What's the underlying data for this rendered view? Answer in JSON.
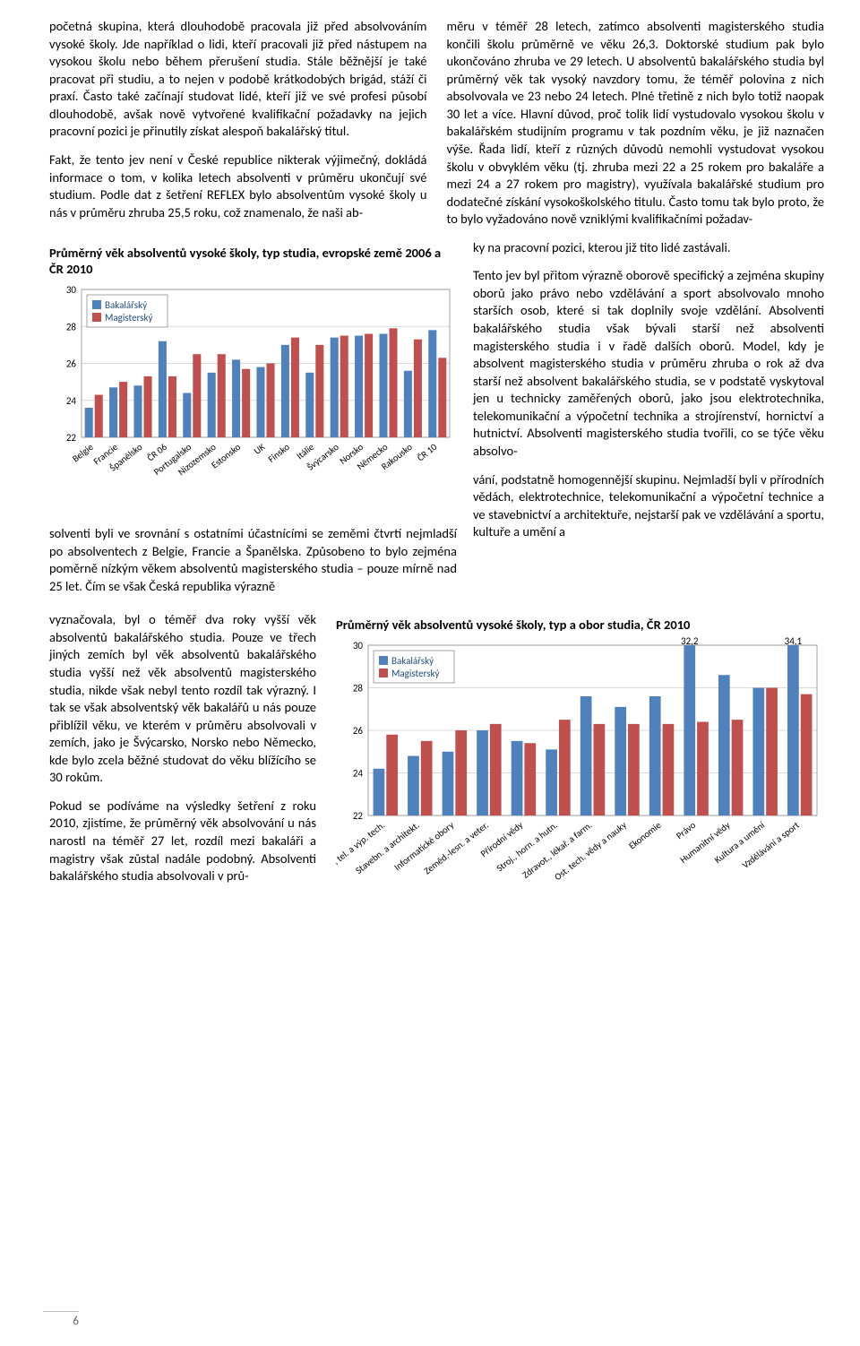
{
  "text": {
    "p1": "početná skupina, která dlouhodobě pracovala již před absolvováním vysoké školy. Jde například o lidi, kteří pracovali již před nástupem na vysokou školu nebo během přerušení studia. Stále běžnější je také pracovat při studiu, a to nejen v podobě krátkodobých brigád, stáží či praxí. Často také začínají studovat lidé, kteří již ve své profesi působí dlouhodobě, avšak nově vytvořené kvalifikační požadavky na jejich pracovní pozici je přinutily získat alespoň bakalářský titul.",
    "p2": "Fakt, že tento jev není v České republice nikterak výjimečný, dokládá informace o tom, v kolika letech absolventi v průměru ukončují své studium. Podle dat z šetření REFLEX bylo absolventům vysoké školy u nás v průměru zhruba 25,5 roku, což znamenalo, že naši ab-",
    "p3a": "solventi byli ve srovnání s ostatními účastnícími se zeměmi čtvrtí nejmladší po absolventech z Belgie, Francie a Španělska. Způsobeno to bylo zejména poměrně nízkým věkem absolventů magisterského studia – pouze mírně nad 25 let. Čím se však Česká republika výrazně",
    "p3b": "vyznačovala, byl o téměř dva roky vyšší věk absolventů bakalářského studia. Pouze ve třech jiných zemích byl věk absolventů bakalářského studia vyšší než věk absolventů magisterského studia, nikde však nebyl tento rozdíl tak výrazný. I tak se však absolventský věk bakalářů u nás pouze přiblížil věku, ve kterém v průměru absolvovali v zemích, jako je Švýcarsko, Norsko nebo Německo, kde bylo zcela běžné studovat do věku blížícího se 30 rokům.",
    "p4": "Pokud se podíváme na výsledky šetření z roku 2010, zjistíme, že průměrný věk absolvování u nás narostl na téměř 27 let, rozdíl mezi bakaláři a magistry však zůstal nadále podobný. Absolventi bakalářského studia absolvovali v prů-",
    "p5": "měru v téměř 28 letech, zatímco absolventi magisterského studia končili školu průměrně ve věku 26,3. Doktorské studium pak bylo ukončováno zhruba ve 29 letech. U absolventů bakalářského studia byl průměrný věk tak vysoký navzdory tomu, že téměř polovina z nich absolvovala ve 23 nebo 24 letech. Plné třetině z nich bylo totiž naopak 30 let a více. Hlavní důvod, proč tolik lidí vystudovalo vysokou školu v bakalářském studijním programu v tak pozdním věku, je již naznačen výše. Řada lidí, kteří z různých důvodů nemohli vystudovat vysokou školu v obvyklém věku (tj. zhruba mezi 22 a 25 rokem pro bakaláře a mezi 24 a 27 rokem pro magistry), využívala bakalářské studium pro dodatečné získání vysokoškolského titulu. Často tomu tak bylo proto, že to bylo vyžadováno nově vzniklými kvalifikačními požadav-",
    "p6": "ky na pracovní pozici, kterou již tito lidé zastávali.",
    "p7": "Tento jev byl přitom výrazně oborově specifický a zejména skupiny oborů jako právo nebo vzdělávání a sport absolvovalo mnoho starších osob, které si tak doplnily svoje vzdělání. Absolventi bakalářského studia však bývali starší než absolventi magisterského studia i v řadě dalších oborů. Model, kdy je absolvent magisterského studia v průměru zhruba o rok až dva starší než absolvent bakalářského studia, se v podstatě vyskytoval jen u technicky zaměřených oborů, jako jsou elektrotechnika, telekomunikační a výpočetní technika a strojírenství, hornictví a hutnictví. Absolventi magisterského studia tvořili, co se týče věku absolvo-",
    "p8": "vání, podstatně homogennější skupinu. Nejmladší byli v přírodních vědách, elektrotechnice, telekomunikační a výpočetní technice a ve stavebnictví a architektuře, nejstarší pak ve vzdělávání a sportu, kultuře a umění a"
  },
  "chart1": {
    "title": "Průměrný věk absolventů vysoké školy, typ studia, evropské země 2006 a ČR 2010",
    "legend": {
      "s1": "Bakalářský",
      "s2": "Magisterský"
    },
    "colors": {
      "s1": "#4f81bd",
      "s2": "#c0504d",
      "grid": "#d9d9d9",
      "axis": "#808080",
      "bg": "#ffffff"
    },
    "ylim": [
      22,
      30
    ],
    "ytick": 2,
    "cats": [
      "Belgie",
      "Francie",
      "Španělsko",
      "ČR 06",
      "Portugalsko",
      "Nizozemsko",
      "Estonsko",
      "UK",
      "Finsko",
      "Itálie",
      "Švýcarsko",
      "Norsko",
      "Německo",
      "Rakousko",
      "ČR 10"
    ],
    "s1": [
      23.6,
      24.7,
      24.8,
      27.2,
      24.4,
      25.5,
      26.2,
      25.8,
      27.0,
      25.5,
      27.4,
      27.5,
      27.6,
      25.6,
      27.8
    ],
    "s2": [
      24.3,
      25.0,
      25.3,
      25.3,
      26.5,
      26.5,
      25.7,
      26.0,
      27.4,
      27.0,
      27.5,
      27.6,
      27.9,
      27.3,
      26.3
    ]
  },
  "chart2": {
    "title": "Průměrný věk absolventů vysoké školy, typ a obor studia, ČR 2010",
    "legend": {
      "s1": "Bakalářský",
      "s2": "Magisterský"
    },
    "colors": {
      "s1": "#4f81bd",
      "s2": "#c0504d",
      "grid": "#d9d9d9",
      "axis": "#808080",
      "bg": "#ffffff"
    },
    "ylim": [
      22,
      30
    ],
    "ytick": 2,
    "cats": [
      "Elek., tel. a výp. tech.",
      "Stavebn. a architekt.",
      "Informatické obory",
      "Zeměd.-lesn. a veter.",
      "Přírodní vědy",
      "Stroj., horn. a hutn.",
      "Zdravot., lékař. a farm.",
      "Ost. tech. vědy a nauky",
      "Ekonomie",
      "Právo",
      "Humanitní vědy",
      "Kultura a umění",
      "Vzdělávání a sport"
    ],
    "s1": [
      24.2,
      24.8,
      25.0,
      26.0,
      25.5,
      25.1,
      27.6,
      27.1,
      27.6,
      32.2,
      28.6,
      28.0,
      34.1
    ],
    "s2": [
      25.8,
      25.5,
      26.0,
      26.3,
      25.4,
      26.5,
      26.3,
      26.3,
      26.3,
      26.4,
      26.5,
      28.0,
      27.7
    ],
    "overflow_labels": {
      "9": "32,2",
      "12": "34,1"
    }
  },
  "page_num": "6"
}
